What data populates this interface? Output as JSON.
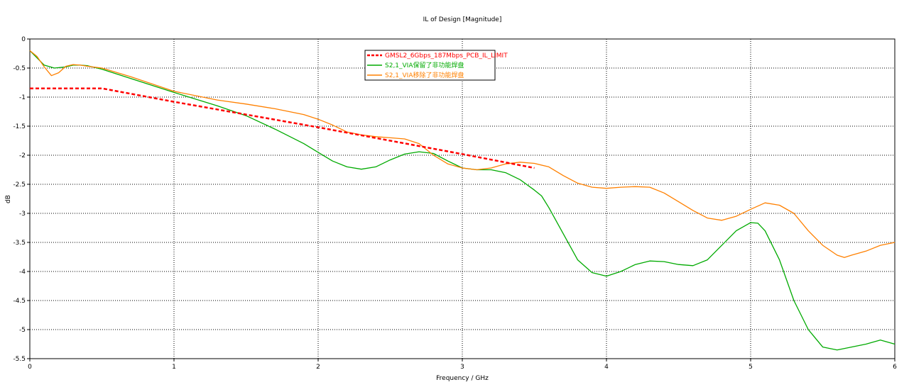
{
  "chart_data": {
    "type": "line",
    "title": "IL of Design [Magnitude]",
    "xlabel": "Frequency / GHz",
    "ylabel": "dB",
    "xlim": [
      0,
      6
    ],
    "ylim": [
      -5.5,
      0
    ],
    "x_ticks": [
      0,
      1,
      2,
      3,
      4,
      5,
      6
    ],
    "x_tick_labels": [
      "0",
      "1",
      "2",
      "3",
      "4",
      "5",
      "6"
    ],
    "y_ticks": [
      0,
      -0.5,
      -1,
      -1.5,
      -2,
      -2.5,
      -3,
      -3.5,
      -4,
      -4.5,
      -5,
      -5.5
    ],
    "y_tick_labels": [
      "0",
      "-0.5",
      "-1",
      "-1.5",
      "-2",
      "-2.5",
      "-3",
      "-3.5",
      "-4",
      "-4.5",
      "-5",
      "-5.5"
    ],
    "grid": true,
    "legend_position": "top-center",
    "series": [
      {
        "name": "GMSL2_6Gbps_187Mbps_PCB_IL_LIMIT",
        "color": "#ff0000",
        "style": "dashed",
        "x": [
          0,
          0.5,
          1,
          1.5,
          2,
          2.5,
          3,
          3.5
        ],
        "y": [
          -0.85,
          -0.85,
          -1.08,
          -1.3,
          -1.52,
          -1.75,
          -1.98,
          -2.22
        ]
      },
      {
        "name": "S2,1_VIA保留了非功能焊盘",
        "color": "#00aa00",
        "style": "solid",
        "x": [
          0,
          0.1,
          0.17,
          0.25,
          0.3,
          0.35,
          0.4,
          0.5,
          0.7,
          1.0,
          1.3,
          1.5,
          1.7,
          1.9,
          2.0,
          2.1,
          2.2,
          2.3,
          2.4,
          2.5,
          2.6,
          2.7,
          2.8,
          2.9,
          3.0,
          3.1,
          3.2,
          3.3,
          3.4,
          3.5,
          3.55,
          3.6,
          3.7,
          3.8,
          3.9,
          4.0,
          4.1,
          4.2,
          4.3,
          4.4,
          4.5,
          4.6,
          4.7,
          4.8,
          4.9,
          5.0,
          5.05,
          5.1,
          5.2,
          5.3,
          5.4,
          5.5,
          5.6,
          5.7,
          5.8,
          5.9,
          6.0
        ],
        "y": [
          -0.2,
          -0.45,
          -0.5,
          -0.48,
          -0.45,
          -0.45,
          -0.46,
          -0.52,
          -0.68,
          -0.92,
          -1.15,
          -1.32,
          -1.55,
          -1.8,
          -1.95,
          -2.1,
          -2.2,
          -2.24,
          -2.2,
          -2.08,
          -1.98,
          -1.94,
          -1.97,
          -2.1,
          -2.22,
          -2.25,
          -2.25,
          -2.3,
          -2.42,
          -2.6,
          -2.7,
          -2.9,
          -3.35,
          -3.8,
          -4.02,
          -4.08,
          -4.0,
          -3.88,
          -3.82,
          -3.83,
          -3.88,
          -3.9,
          -3.8,
          -3.55,
          -3.3,
          -3.16,
          -3.17,
          -3.3,
          -3.8,
          -4.5,
          -5.0,
          -5.3,
          -5.35,
          -5.3,
          -5.25,
          -5.18,
          -5.25
        ]
      },
      {
        "name": "S2,1_VIA移除了非功能焊盘",
        "color": "#ff8000",
        "style": "solid",
        "x": [
          0,
          0.05,
          0.1,
          0.15,
          0.2,
          0.25,
          0.3,
          0.35,
          0.4,
          0.5,
          0.7,
          1.0,
          1.3,
          1.5,
          1.7,
          1.9,
          2.0,
          2.1,
          2.2,
          2.3,
          2.4,
          2.5,
          2.6,
          2.7,
          2.8,
          2.9,
          3.0,
          3.1,
          3.2,
          3.3,
          3.4,
          3.5,
          3.6,
          3.7,
          3.8,
          3.9,
          4.0,
          4.1,
          4.2,
          4.3,
          4.4,
          4.5,
          4.6,
          4.7,
          4.8,
          4.9,
          5.0,
          5.1,
          5.2,
          5.3,
          5.4,
          5.5,
          5.6,
          5.65,
          5.7,
          5.8,
          5.9,
          6.0
        ],
        "y": [
          -0.2,
          -0.3,
          -0.48,
          -0.63,
          -0.58,
          -0.47,
          -0.44,
          -0.45,
          -0.47,
          -0.5,
          -0.65,
          -0.9,
          -1.05,
          -1.12,
          -1.2,
          -1.3,
          -1.38,
          -1.48,
          -1.6,
          -1.65,
          -1.68,
          -1.7,
          -1.72,
          -1.8,
          -2.0,
          -2.15,
          -2.22,
          -2.25,
          -2.22,
          -2.15,
          -2.12,
          -2.14,
          -2.2,
          -2.35,
          -2.48,
          -2.55,
          -2.57,
          -2.55,
          -2.54,
          -2.55,
          -2.65,
          -2.8,
          -2.95,
          -3.08,
          -3.12,
          -3.05,
          -2.93,
          -2.82,
          -2.86,
          -3.0,
          -3.3,
          -3.55,
          -3.72,
          -3.76,
          -3.72,
          -3.65,
          -3.55,
          -3.5
        ]
      }
    ]
  }
}
